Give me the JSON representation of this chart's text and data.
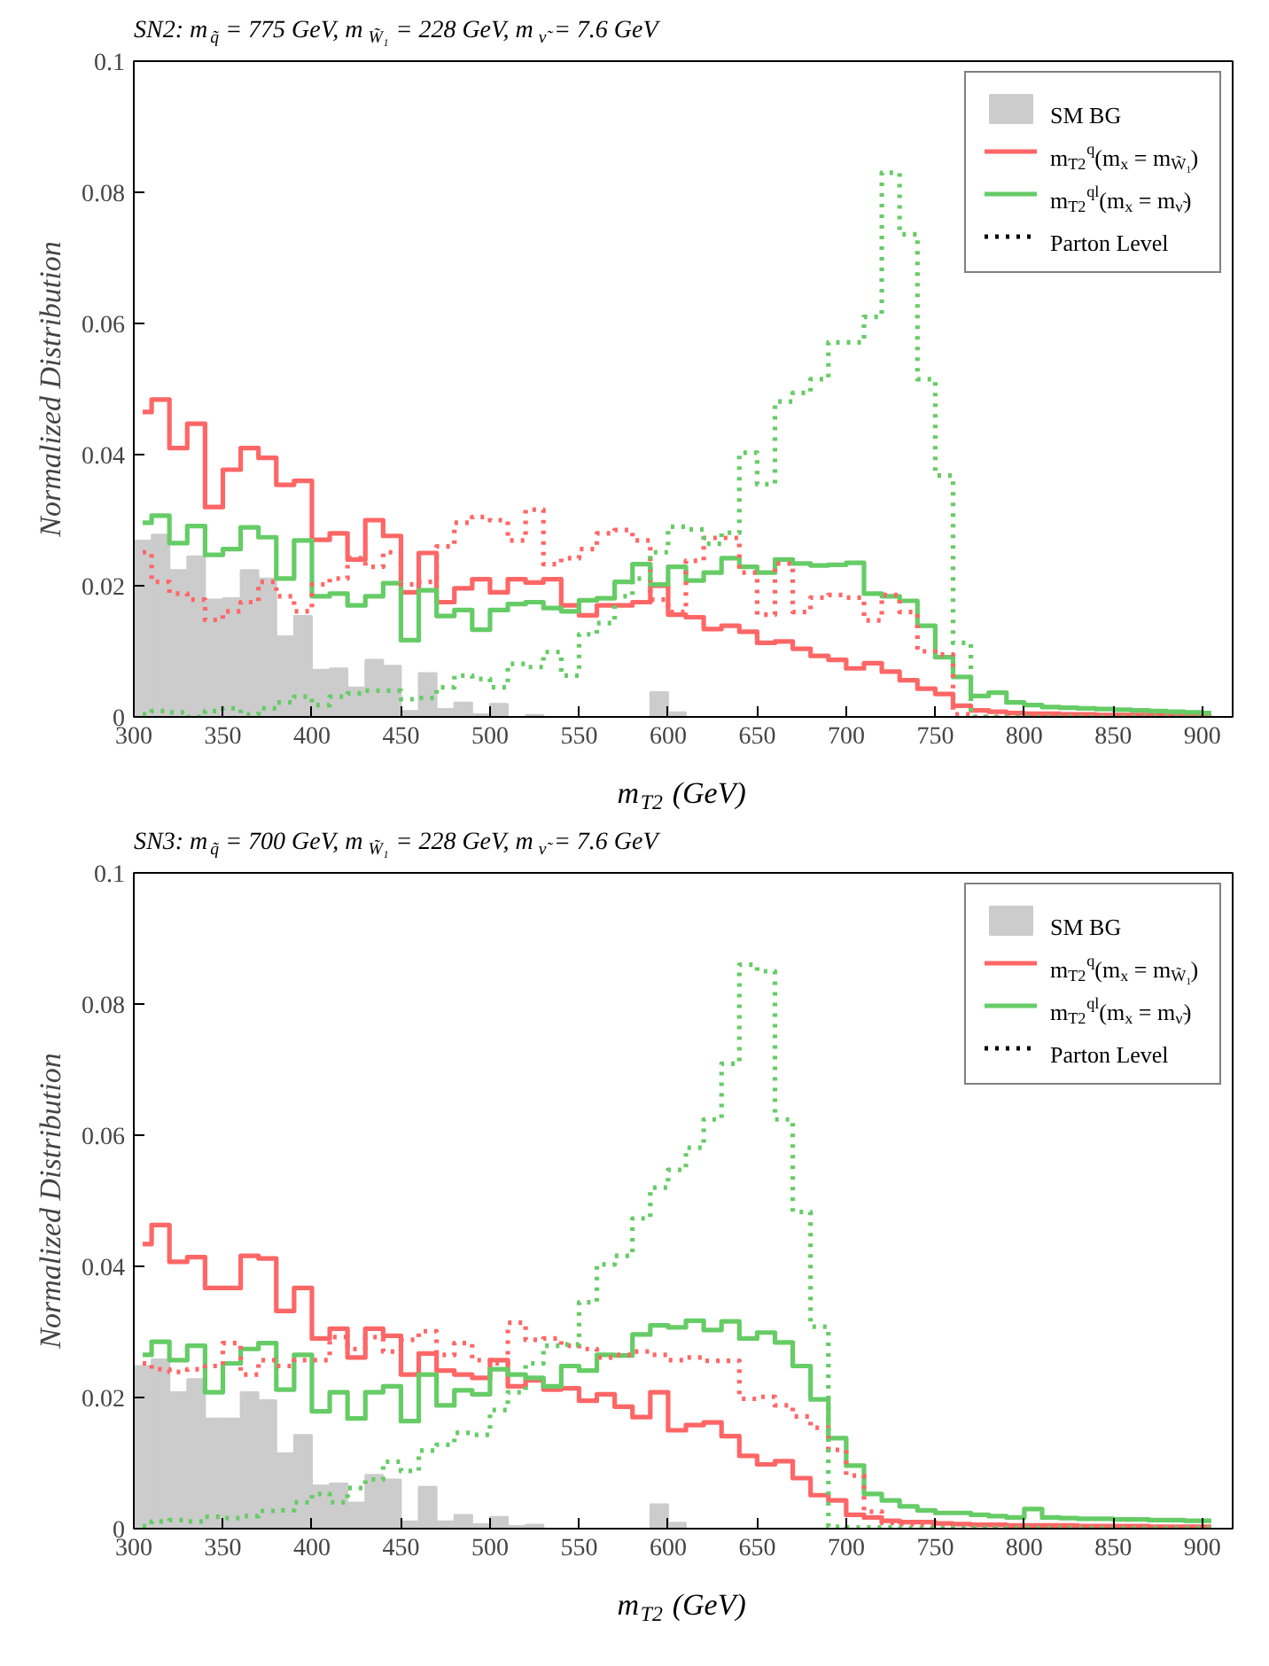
{
  "chart_data": [
    {
      "type": "histogram",
      "title": "SN2: m$_{q̃}$ = 775 GeV,   m$_{W̃₁}$ = 228 GeV, m$_{ν̃}$ = 7.6 GeV",
      "xlabel": "m$_{T2}$ (GeV)",
      "ylabel": "Normalized Distribution",
      "bins": [
        300,
        310,
        320,
        330,
        340,
        350,
        360,
        370,
        380,
        390,
        400,
        410,
        420,
        430,
        440,
        450,
        460,
        470,
        480,
        490,
        500,
        510,
        520,
        530,
        540,
        550,
        560,
        570,
        580,
        590,
        600,
        610,
        620,
        630,
        640,
        650,
        660,
        670,
        680,
        690,
        700,
        710,
        720,
        730,
        740,
        750,
        760,
        770,
        780,
        790,
        800,
        810,
        820,
        830,
        840,
        850,
        860,
        870,
        880,
        890,
        900,
        910
      ],
      "x": [
        305,
        315,
        325,
        335,
        345,
        355,
        365,
        375,
        385,
        395,
        405,
        415,
        425,
        435,
        445,
        455,
        465,
        475,
        485,
        495,
        505,
        515,
        525,
        535,
        545,
        555,
        565,
        575,
        585,
        595,
        605,
        615,
        625,
        635,
        645,
        655,
        665,
        675,
        685,
        695,
        705,
        715,
        725,
        735,
        745,
        755,
        765,
        775,
        785,
        795,
        805,
        815,
        825,
        835,
        845,
        855,
        865,
        875,
        885,
        895,
        905
      ],
      "xlim": [
        300,
        917
      ],
      "xticks": [
        300,
        350,
        400,
        450,
        500,
        550,
        600,
        650,
        700,
        750,
        800,
        850,
        900
      ],
      "ylim": [
        0,
        0.1
      ],
      "yticks": [
        0,
        0.02,
        0.04,
        0.06,
        0.08,
        0.1
      ],
      "grid": false,
      "legend": "top right",
      "annotations": [
        "Parton Level"
      ],
      "series": [
        {
          "name": "SM BG",
          "color": "#cccccc",
          "values": [
            0.0269,
            0.0278,
            0.0224,
            0.0245,
            0.0179,
            0.0181,
            0.0224,
            0.0211,
            0.0123,
            0.0154,
            0.0072,
            0.0074,
            0.0045,
            0.0087,
            0.0078,
            0.0009,
            0.0067,
            0.0012,
            0.0022,
            0.0004,
            0.002,
            null,
            0.0003,
            0,
            0,
            0,
            0,
            0,
            0,
            0.0038,
            0.0007,
            0,
            0,
            0,
            0,
            0,
            0,
            0,
            0,
            0,
            0,
            0,
            0,
            0,
            0,
            0,
            0,
            null,
            0,
            0,
            0,
            0,
            0,
            0,
            0,
            0,
            0,
            0,
            0,
            0,
            0
          ]
        },
        {
          "type": "step",
          "name": "m$_{T2}$$^{q}$(m$_{x}$ = m$_{W̃₁}$)",
          "color": "#ff6666",
          "line_style": "solid",
          "values": [
            0.0465,
            0.0484,
            0.041,
            0.0447,
            0.032,
            0.0377,
            0.041,
            0.0395,
            0.0354,
            0.036,
            0.027,
            0.028,
            0.024,
            0.03,
            0.0276,
            0.019,
            0.025,
            0.0175,
            0.0196,
            0.021,
            0.019,
            0.021,
            0.0205,
            0.021,
            0.017,
            0.0155,
            0.017,
            0.017,
            0.0175,
            0.02,
            0.0156,
            0.0152,
            0.0134,
            0.0139,
            0.013,
            0.0113,
            0.0115,
            0.0104,
            0.0093,
            0.0087,
            0.0074,
            0.0082,
            0.0069,
            0.0056,
            0.0043,
            0.0035,
            0.0017,
            0.001,
            0.0008,
            0.0006,
            0.0005,
            0.0005,
            0.0004,
            0.0004,
            0.0003,
            0.0003,
            0.0003,
            0.0002,
            0.0002,
            0.0002,
            0.0002
          ]
        },
        {
          "type": "step",
          "name": "m$_{T2}$$^{ql}$(m$_{x}$ = m$_{ν̃}$)",
          "color": "#66cc66",
          "line_style": "solid",
          "values": [
            0.0296,
            0.0307,
            0.0265,
            0.0291,
            0.0247,
            0.0256,
            0.0289,
            0.0274,
            0.0211,
            0.0269,
            0.0184,
            0.0188,
            0.017,
            0.0184,
            0.0204,
            0.0117,
            0.0193,
            0.0154,
            0.0163,
            0.0133,
            0.0163,
            0.0172,
            0.0175,
            0.0166,
            0.0161,
            0.0178,
            0.0181,
            0.0206,
            0.0233,
            0.0202,
            0.0229,
            0.0208,
            0.022,
            0.0242,
            0.0229,
            0.022,
            0.024,
            0.0234,
            0.0231,
            0.0232,
            0.0235,
            0.0188,
            0.0184,
            0.0177,
            0.0139,
            0.0091,
            0.0061,
            0.0032,
            0.0037,
            0.0022,
            0.0018,
            0.0015,
            0.0014,
            0.0013,
            0.0012,
            0.0011,
            0.001,
            0.0009,
            0.0008,
            0.0007,
            0.0006
          ]
        },
        {
          "type": "step",
          "color": "#ff6666",
          "line_style": "dotted",
          "values": [
            0.0251,
            0.0206,
            0.0188,
            0.0179,
            0.0148,
            0.0161,
            0.0175,
            0.0206,
            0.0184,
            0.0161,
            0.0202,
            0.0211,
            0.0242,
            0.0229,
            0.0251,
            0.0202,
            0.0206,
            0.026,
            0.0296,
            0.0305,
            0.03,
            0.0269,
            0.0316,
            0.0233,
            0.0242,
            0.0256,
            0.028,
            0.0285,
            0.0269,
            0.0179,
            0.016,
            0.0238,
            0.0273,
            0.0273,
            0.022,
            0.0156,
            0.0234,
            0.016,
            0.0182,
            0.0186,
            0.0182,
            0.0147,
            0.0186,
            0.016,
            0.01,
            0.0095,
            0.0004,
            0,
            0,
            0,
            0,
            0,
            0,
            0,
            0,
            0,
            0,
            0,
            0,
            0,
            0
          ]
        },
        {
          "type": "step",
          "color": "#66cc66",
          "line_style": "dotted",
          "values": [
            0.0004,
            0.0009,
            0.0007,
            0,
            0.0009,
            0.0013,
            0.0004,
            0.0013,
            0.0022,
            0.0031,
            0.0018,
            0.0031,
            0.0036,
            0.004,
            0.004,
            0.0027,
            0.0029,
            0.0045,
            0.0063,
            0.0058,
            0.0045,
            0.0081,
            0.0076,
            0.0099,
            0.0063,
            0.0126,
            0.0143,
            0.0184,
            0.0211,
            0.0251,
            0.029,
            0.0286,
            0.0264,
            0.0281,
            0.0403,
            0.0355,
            0.0481,
            0.0494,
            0.0515,
            0.0571,
            0.0571,
            0.061,
            0.083,
            0.0736,
            0.0515,
            0.0368,
            0.0113,
            0,
            0,
            0,
            0,
            0,
            0,
            0,
            0,
            0,
            0,
            0,
            0,
            0,
            0
          ]
        }
      ]
    },
    {
      "type": "histogram",
      "title": "SN3: m$_{q̃}$ = 700 GeV,   m$_{W̃₁}$ = 228 GeV, m$_{ν̃}$ = 7.6 GeV",
      "xlabel": "m$_{T2}$ (GeV)",
      "ylabel": "Normalized Distribution",
      "bins": [
        300,
        310,
        320,
        330,
        340,
        350,
        360,
        370,
        380,
        390,
        400,
        410,
        420,
        430,
        440,
        450,
        460,
        470,
        480,
        490,
        500,
        510,
        520,
        530,
        540,
        550,
        560,
        570,
        580,
        590,
        600,
        610,
        620,
        630,
        640,
        650,
        660,
        670,
        680,
        690,
        700,
        710,
        720,
        730,
        740,
        750,
        760,
        770,
        780,
        790,
        800,
        810,
        820,
        830,
        840,
        850,
        860,
        870,
        880,
        890,
        900,
        910
      ],
      "x": [
        305,
        315,
        325,
        335,
        345,
        355,
        365,
        375,
        385,
        395,
        405,
        415,
        425,
        435,
        445,
        455,
        465,
        475,
        485,
        495,
        505,
        515,
        525,
        535,
        545,
        555,
        565,
        575,
        585,
        595,
        605,
        615,
        625,
        635,
        645,
        655,
        665,
        675,
        685,
        695,
        705,
        715,
        725,
        735,
        745,
        755,
        765,
        775,
        785,
        795,
        805,
        815,
        825,
        835,
        845,
        855,
        865,
        875,
        885,
        895,
        905
      ],
      "xlim": [
        300,
        917
      ],
      "xticks": [
        300,
        350,
        400,
        450,
        500,
        550,
        600,
        650,
        700,
        750,
        800,
        850,
        900
      ],
      "ylim": [
        0,
        0.1
      ],
      "yticks": [
        0,
        0.02,
        0.04,
        0.06,
        0.08,
        0.1
      ],
      "grid": false,
      "legend": "top right",
      "annotations": [
        "Parton Level"
      ],
      "series": [
        {
          "name": "SM BG",
          "color": "#cccccc",
          "values": [
            0.0248,
            0.0258,
            0.0208,
            0.0228,
            0.0168,
            0.0168,
            0.0208,
            0.0196,
            0.0115,
            0.0143,
            0.0066,
            0.0069,
            0.004,
            0.0082,
            0.0075,
            0.0011,
            0.0064,
            0.0011,
            0.0021,
            0.0007,
            0.0018,
            0.0004,
            0.0006,
            null,
            0,
            0,
            0,
            0,
            0,
            0.0037,
            0.0009,
            0,
            0,
            0,
            0,
            0,
            0,
            0,
            0,
            0,
            0,
            0,
            0,
            0,
            0,
            0,
            0,
            0,
            0,
            0,
            0,
            0,
            0,
            0,
            0,
            0,
            0,
            0,
            0,
            0,
            0
          ]
        },
        {
          "type": "step",
          "name": "m$_{T2}$$^{q}$(m$_{x}$ = m$_{W̃₁}$)",
          "color": "#ff6666",
          "line_style": "solid",
          "values": [
            0.0434,
            0.0463,
            0.0407,
            0.0414,
            0.0367,
            0.0367,
            0.0416,
            0.0412,
            0.0332,
            0.0367,
            0.029,
            0.0305,
            0.0261,
            0.0305,
            0.0294,
            0.0235,
            0.0267,
            0.0241,
            0.0235,
            0.023,
            0.0257,
            0.0217,
            0.0226,
            0.0212,
            0.0214,
            0.0195,
            0.0205,
            0.0186,
            0.017,
            0.0208,
            0.015,
            0.0158,
            0.0162,
            0.0141,
            0.0111,
            0.0098,
            0.0103,
            0.0077,
            0.0051,
            0.0043,
            0.0021,
            0.0017,
            0.0012,
            0.001,
            0.001,
            0.0008,
            0.0007,
            0.0006,
            0.0006,
            0.0005,
            0.0005,
            0.0005,
            0.0005,
            0.0004,
            0.0004,
            0.0004,
            0.0004,
            0.0003,
            0.0003,
            0.0003,
            0.0003
          ]
        },
        {
          "type": "step",
          "name": "m$_{T2}$$^{ql}$(m$_{x}$ = m$_{ν̃}$)",
          "color": "#66cc66",
          "line_style": "solid",
          "values": [
            0.0265,
            0.0285,
            0.0257,
            0.0279,
            0.0208,
            0.0252,
            0.0274,
            0.0283,
            0.0212,
            0.0265,
            0.0179,
            0.0208,
            0.0168,
            0.0208,
            0.0217,
            0.0164,
            0.0235,
            0.0188,
            0.0211,
            0.0205,
            0.0243,
            0.0235,
            0.023,
            0.0217,
            0.0248,
            0.0241,
            0.0265,
            0.0264,
            0.0296,
            0.031,
            0.0307,
            0.0317,
            0.0303,
            0.0316,
            0.029,
            0.0299,
            0.0284,
            0.0248,
            0.0197,
            0.0138,
            0.0096,
            0.0053,
            0.0043,
            0.0034,
            0.0028,
            0.0024,
            0.0024,
            0.0021,
            0.0019,
            0.0017,
            0.003,
            0.0017,
            0.0016,
            0.0015,
            0.0015,
            0.0014,
            0.0014,
            0.0013,
            0.0013,
            0.0012,
            0.0012
          ]
        },
        {
          "type": "step",
          "color": "#ff6666",
          "line_style": "dotted",
          "values": [
            0.0252,
            0.0243,
            0.0239,
            0.0243,
            0.0248,
            0.0283,
            0.0235,
            0.0257,
            0.0248,
            0.0257,
            0.0257,
            0.0292,
            0.0274,
            0.0292,
            0.027,
            0.0288,
            0.0301,
            0.0265,
            0.0283,
            0.0257,
            0.0252,
            0.0314,
            0.0288,
            0.029,
            0.0279,
            0.0274,
            0.0261,
            0.0265,
            0.027,
            0.0265,
            0.0257,
            0.0261,
            0.0256,
            0.0256,
            0.0198,
            0.0201,
            0.0188,
            0.0171,
            0.0154,
            0.012,
            0.0081,
            0.0026,
            0.0009,
            0.0007,
            0.0006,
            0.0005,
            0.0004,
            0.0004,
            0.0003,
            0.0003,
            0.0003,
            0.0002,
            0.0002,
            0.0002,
            0.0002,
            0.0001,
            0.0001,
            0.0001,
            0.0001,
            0.0001,
            0.0001
          ]
        },
        {
          "type": "step",
          "color": "#66cc66",
          "line_style": "dotted",
          "values": [
            0.0004,
            0.0011,
            0.0013,
            0.0011,
            0.0018,
            0.0016,
            0.0019,
            0.0027,
            0.0028,
            0.004,
            0.0053,
            0.004,
            0.0062,
            0.0075,
            0.0102,
            0.0088,
            0.0119,
            0.0128,
            0.0146,
            0.0143,
            0.0181,
            0.0208,
            0.0252,
            0.0279,
            0.0281,
            0.0345,
            0.0403,
            0.0416,
            0.0473,
            0.052,
            0.0547,
            0.0581,
            0.0624,
            0.0709,
            0.086,
            0.085,
            0.0624,
            0.0483,
            0.0308,
            0.0003,
            0.0002,
            0.0002,
            0.0002,
            0.0001,
            0.0001,
            0.0001,
            0.0001,
            0.0001,
            0.0001,
            0.0001,
            0.0001,
            0.0001,
            0.0001,
            0.0001,
            0.0001,
            0.0001,
            0.0001,
            0.0001,
            0.0001,
            0.0001,
            0.0001
          ]
        }
      ]
    }
  ]
}
